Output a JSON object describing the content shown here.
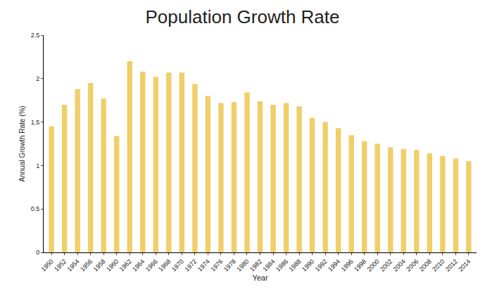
{
  "chart_data": {
    "type": "bar",
    "title": "Population Growth Rate",
    "x_label": "Year",
    "y_label": "Annual Growth Rate (%)",
    "categories": [
      "1950",
      "1952",
      "1954",
      "1956",
      "1958",
      "1960",
      "1962",
      "1964",
      "1966",
      "1968",
      "1970",
      "1972",
      "1974",
      "1976",
      "1978",
      "1980",
      "1982",
      "1984",
      "1986",
      "1988",
      "1990",
      "1992",
      "1994",
      "1996",
      "1998",
      "2000",
      "2002",
      "2004",
      "2006",
      "2008",
      "2010",
      "2012",
      "2014"
    ],
    "values": [
      1.45,
      1.7,
      1.88,
      1.95,
      1.77,
      1.34,
      2.2,
      2.08,
      2.02,
      2.07,
      2.07,
      1.94,
      1.8,
      1.72,
      1.73,
      1.84,
      1.74,
      1.7,
      1.72,
      1.68,
      1.55,
      1.5,
      1.43,
      1.35,
      1.28,
      1.25,
      1.21,
      1.19,
      1.18,
      1.14,
      1.11,
      1.08,
      1.05
    ],
    "color": "#f0cf6a",
    "ylim": [
      0,
      2.5
    ],
    "yticks": [
      0,
      0.5,
      1,
      1.5,
      2,
      2.5
    ],
    "grid": false
  }
}
